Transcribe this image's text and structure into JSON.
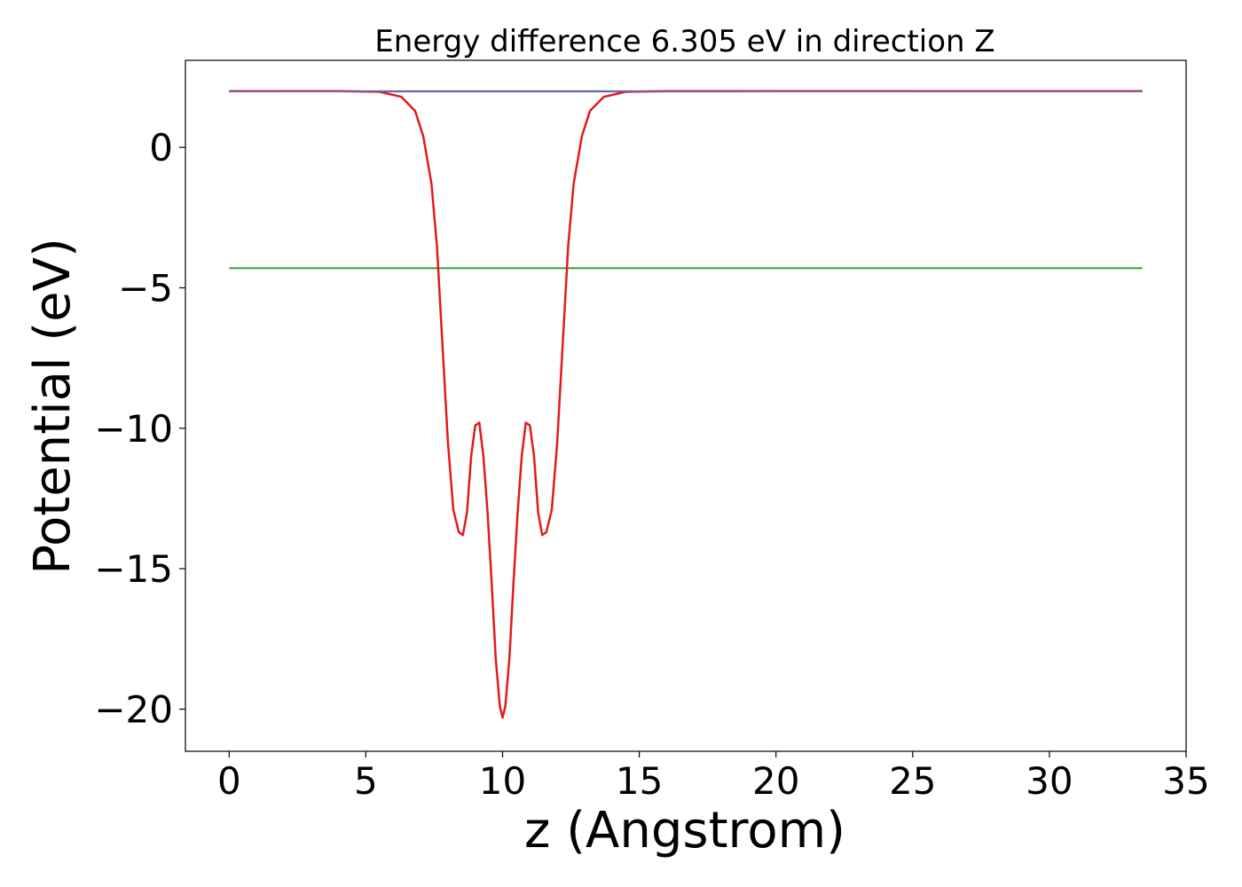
{
  "chart_data": {
    "type": "line",
    "title": "Energy difference 6.305 eV in direction Z",
    "xlabel": "z (Angstrom)",
    "ylabel": "Potential (eV)",
    "xlim": [
      -1.6,
      35
    ],
    "ylim": [
      -21.5,
      3.1
    ],
    "xticks": [
      0,
      5,
      10,
      15,
      20,
      25,
      30,
      35
    ],
    "xtick_labels": [
      "0",
      "5",
      "10",
      "15",
      "20",
      "25",
      "30",
      "35"
    ],
    "yticks": [
      0,
      -5,
      -10,
      -15,
      -20
    ],
    "ytick_labels": [
      "0",
      "−5",
      "−10",
      "−15",
      "−20"
    ],
    "grid": false,
    "colors": {
      "red": "#e31a1c",
      "blue": "#1f77b4",
      "green": "#2ca02c",
      "purple": "#7b5fa5"
    },
    "series": [
      {
        "color_key": "blue",
        "x": [
          0,
          33.4
        ],
        "y": [
          2.0,
          2.0
        ]
      },
      {
        "color_key": "green",
        "x": [
          0,
          33.4
        ],
        "y": [
          -4.3,
          -4.3
        ]
      },
      {
        "color_key": "red",
        "x": [
          0,
          4.0,
          5.5,
          6.3,
          6.8,
          7.1,
          7.4,
          7.6,
          7.8,
          8.0,
          8.2,
          8.4,
          8.55,
          8.7,
          8.85,
          9.0,
          9.15,
          9.3,
          9.45,
          9.6,
          9.75,
          9.9,
          10.0,
          10.1,
          10.25,
          10.4,
          10.55,
          10.7,
          10.85,
          11.0,
          11.15,
          11.3,
          11.45,
          11.6,
          11.8,
          12.0,
          12.2,
          12.4,
          12.6,
          12.9,
          13.2,
          13.7,
          14.5,
          16.0,
          20.0,
          33.4
        ],
        "y": [
          2.0,
          2.0,
          1.98,
          1.8,
          1.3,
          0.4,
          -1.3,
          -3.5,
          -7.0,
          -10.5,
          -12.9,
          -13.7,
          -13.8,
          -13.0,
          -11.0,
          -9.9,
          -9.8,
          -11.0,
          -13.0,
          -15.5,
          -18.2,
          -19.9,
          -20.3,
          -19.9,
          -18.2,
          -15.5,
          -13.0,
          -11.0,
          -9.8,
          -9.9,
          -11.0,
          -13.0,
          -13.8,
          -13.7,
          -12.9,
          -10.5,
          -7.0,
          -3.5,
          -1.3,
          0.4,
          1.3,
          1.8,
          1.98,
          2.0,
          2.0,
          2.0
        ]
      },
      {
        "color_key": "purple",
        "x": [
          0,
          6.0,
          14.8,
          33.4
        ],
        "y": [
          2.0,
          1.99,
          1.99,
          2.0
        ]
      }
    ]
  }
}
